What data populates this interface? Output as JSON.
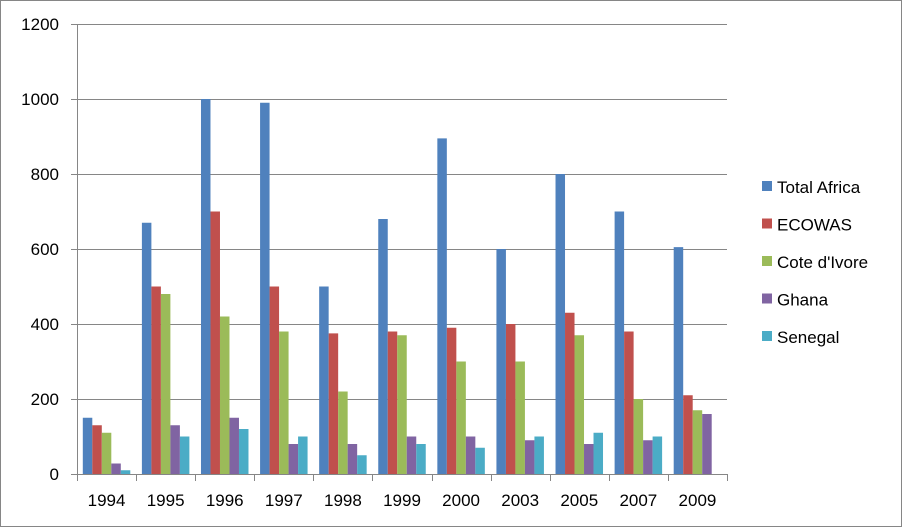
{
  "chart_data": {
    "type": "bar",
    "title": "",
    "xlabel": "",
    "ylabel": "",
    "categories": [
      "1994",
      "1995",
      "1996",
      "1997",
      "1998",
      "1999",
      "2000",
      "2003",
      "2005",
      "2007",
      "2009"
    ],
    "ylim": [
      0,
      1200
    ],
    "yticks": [
      0,
      200,
      400,
      600,
      800,
      1000,
      1200
    ],
    "grid": true,
    "legend_position": "right",
    "series": [
      {
        "name": "Total Africa",
        "color": "#4F81BD",
        "values": [
          150,
          670,
          1000,
          990,
          500,
          680,
          895,
          600,
          800,
          700,
          605
        ]
      },
      {
        "name": "ECOWAS",
        "color": "#C0504D",
        "values": [
          130,
          500,
          700,
          500,
          375,
          380,
          390,
          400,
          430,
          380,
          210
        ]
      },
      {
        "name": "Cote d'Ivore",
        "color": "#9BBB59",
        "values": [
          110,
          480,
          420,
          380,
          220,
          370,
          300,
          300,
          370,
          200,
          170
        ]
      },
      {
        "name": "Ghana",
        "color": "#8064A2",
        "values": [
          28,
          130,
          150,
          80,
          80,
          100,
          100,
          90,
          80,
          90,
          160
        ]
      },
      {
        "name": "Senegal",
        "color": "#4BACC6",
        "values": [
          10,
          100,
          120,
          100,
          50,
          80,
          70,
          100,
          110,
          100,
          0
        ]
      }
    ]
  }
}
